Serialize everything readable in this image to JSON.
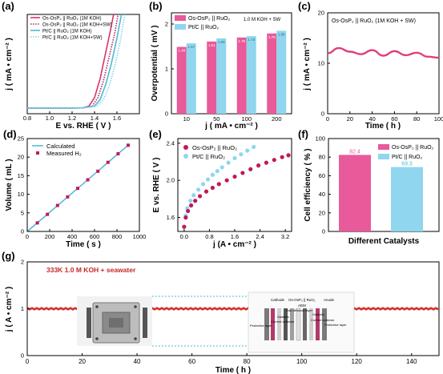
{
  "chart_data": [
    {
      "panel_label": "(a)",
      "type": "line",
      "xlabel": "E vs. RHE ( V )",
      "ylabel": "j ( mA • cm⁻² )",
      "xlim": [
        0.8,
        1.8
      ],
      "xticks": [
        "0.8",
        "1.0",
        "1.2",
        "1.4",
        "1.6"
      ],
      "ylim": [
        -5,
        100
      ],
      "legend_position": "top-left",
      "series": [
        {
          "name": "Os-OsP₂ || RuO₂ (1M KOH)",
          "color": "#d6336c",
          "style": "solid",
          "x": [
            0.8,
            1.0,
            1.2,
            1.3,
            1.35,
            1.4,
            1.45,
            1.5,
            1.54,
            1.57
          ],
          "y": [
            1,
            1,
            1,
            1.2,
            3,
            12,
            32,
            60,
            82,
            100
          ]
        },
        {
          "name": "Os-OsP₂ || RuO₂ (1M KOH+SW)",
          "color": "#a82860",
          "style": "dotted",
          "x": [
            0.8,
            1.0,
            1.2,
            1.3,
            1.38,
            1.43,
            1.48,
            1.53,
            1.58,
            1.61
          ],
          "y": [
            1,
            1,
            1,
            1.3,
            3,
            12,
            30,
            55,
            80,
            100
          ]
        },
        {
          "name": "Pt/C || RuO₂ (1M KOH)",
          "color": "#4fb7d6",
          "style": "solid",
          "x": [
            0.8,
            1.0,
            1.2,
            1.3,
            1.4,
            1.45,
            1.5,
            1.55,
            1.6,
            1.64
          ],
          "y": [
            1,
            1,
            1,
            1.3,
            3,
            10,
            26,
            48,
            75,
            100
          ]
        },
        {
          "name": "Pt/C || RuO₂ (1M KOH+SW)",
          "color": "#86d4e6",
          "style": "dotted",
          "x": [
            0.8,
            1.0,
            1.2,
            1.3,
            1.42,
            1.48,
            1.53,
            1.58,
            1.63,
            1.67
          ],
          "y": [
            1,
            1,
            1,
            1.3,
            3,
            10,
            24,
            45,
            72,
            100
          ]
        }
      ]
    },
    {
      "panel_label": "(b)",
      "type": "bar",
      "xlabel": "j ( mA • cm⁻² )",
      "ylabel": "Overpotential ( mV )",
      "annotation": "1.0 M KOH + SW",
      "categories": [
        "10",
        "50",
        "100",
        "200"
      ],
      "ylim": [
        0,
        2
      ],
      "yticks": [
        "0",
        "1",
        "2"
      ],
      "legend_position": "top-left",
      "series": [
        {
          "name": "Os-OsP₂ || RuO₂",
          "color": "#e85a99",
          "values": [
            1.49,
            1.61,
            1.7,
            1.79
          ],
          "labels": [
            "1.49",
            "1.61",
            "1.70",
            "1.79"
          ]
        },
        {
          "name": "Pt/C || RuO₂",
          "color": "#8fd6ee",
          "values": [
            1.57,
            1.68,
            1.73,
            1.85
          ],
          "labels": [
            "1.57",
            "1.68",
            "1.73",
            "1.85"
          ]
        }
      ]
    },
    {
      "panel_label": "(c)",
      "type": "line",
      "title": "Os-OsP₂ || RuO₂ (1M KOH + SW)",
      "xlabel": "Time ( h )",
      "ylabel": "j ( mA • cm⁻² )",
      "xlim": [
        0,
        100
      ],
      "xticks": [
        "0",
        "20",
        "40",
        "60",
        "80",
        "100"
      ],
      "ylim": [
        0,
        20
      ],
      "yticks": [
        "0",
        "10",
        "20"
      ],
      "series": [
        {
          "name": "",
          "color": "#e0407e",
          "x": [
            0,
            10,
            20,
            30,
            40,
            50,
            60,
            70,
            80,
            90,
            100
          ],
          "y": [
            12,
            13,
            12.3,
            11.8,
            12.6,
            11.5,
            12.4,
            11.6,
            12.1,
            11.3,
            11.1
          ]
        }
      ]
    },
    {
      "panel_label": "(d)",
      "type": "scatter",
      "xlabel": "Time ( s )",
      "ylabel": "Volume ( mL )",
      "xlim": [
        0,
        1000
      ],
      "xticks": [
        "0",
        "200",
        "400",
        "600",
        "800",
        "1000"
      ],
      "ylim": [
        0,
        25
      ],
      "yticks": [
        "0",
        "5",
        "10",
        "15",
        "20",
        "25"
      ],
      "legend_position": "top-left",
      "series": [
        {
          "name": "Calculated",
          "color": "#4fb7d6",
          "style": "line",
          "x": [
            0,
            900
          ],
          "y": [
            0,
            23.2
          ]
        },
        {
          "name": "Measured H₂",
          "color": "#c2185b",
          "style": "marker",
          "x": [
            90,
            180,
            270,
            360,
            450,
            540,
            630,
            720,
            810,
            900
          ],
          "y": [
            2.3,
            4.6,
            7,
            9.3,
            11.6,
            13.9,
            16.2,
            18.6,
            20.9,
            23.2
          ]
        }
      ]
    },
    {
      "panel_label": "(e)",
      "type": "scatter",
      "xlabel": "j (A • cm⁻² )",
      "ylabel": "E vs. RHE ( V )",
      "xlim": [
        -0.2,
        3.4
      ],
      "xticks": [
        "0.0",
        "0.8",
        "1.6",
        "2.4",
        "3.2"
      ],
      "ylim": [
        1.45,
        2.45
      ],
      "yticks": [
        "1.6",
        "2.0",
        "2.4"
      ],
      "legend_position": "top-left",
      "series": [
        {
          "name": "Os-OsP₂ || RuO₂",
          "color": "#c2185b",
          "x": [
            0.0,
            0.05,
            0.12,
            0.22,
            0.35,
            0.5,
            0.7,
            0.9,
            1.1,
            1.35,
            1.6,
            1.85,
            2.1,
            2.35,
            2.6,
            2.85,
            3.1,
            3.3
          ],
          "y": [
            1.5,
            1.6,
            1.67,
            1.73,
            1.78,
            1.83,
            1.88,
            1.92,
            1.96,
            2.0,
            2.04,
            2.08,
            2.12,
            2.16,
            2.19,
            2.22,
            2.25,
            2.27
          ]
        },
        {
          "name": "Pt/C || RuO₂",
          "color": "#8fd6ee",
          "x": [
            0.0,
            0.05,
            0.1,
            0.2,
            0.3,
            0.45,
            0.6,
            0.75,
            0.9,
            1.05,
            1.2,
            1.4,
            1.6,
            1.8,
            2.0,
            2.2
          ],
          "y": [
            1.5,
            1.62,
            1.7,
            1.78,
            1.84,
            1.9,
            1.96,
            2.01,
            2.06,
            2.1,
            2.14,
            2.19,
            2.24,
            2.28,
            2.32,
            2.36
          ]
        }
      ]
    },
    {
      "panel_label": "(f)",
      "type": "bar",
      "xlabel": "Different Catalysts",
      "ylabel": "Cell efficiency ( % )",
      "ylim": [
        0,
        100
      ],
      "yticks": [
        "0",
        "20",
        "40",
        "60",
        "80",
        "100"
      ],
      "legend_position": "top-right",
      "categories": [
        "Os-OsP₂ || RuO₂",
        "Pt/C || RuO₂"
      ],
      "values": [
        82.4,
        69.3
      ],
      "value_labels": [
        "82.4",
        "69.3"
      ],
      "colors": [
        "#e85a99",
        "#8fd6ee"
      ]
    },
    {
      "panel_label": "(g)",
      "type": "line",
      "annotation": "333K   1.0 M KOH + seawater",
      "xlabel": "Time ( h )",
      "ylabel": "j ( A • cm⁻² )",
      "xlim": [
        0,
        150
      ],
      "xticks": [
        "0",
        "20",
        "40",
        "60",
        "80",
        "100",
        "120",
        "140"
      ],
      "ylim": [
        0,
        2
      ],
      "yticks": [
        "0",
        "1",
        "2"
      ],
      "series": [
        {
          "name": "",
          "color": "#d32f2f",
          "x": [
            0,
            150
          ],
          "y": [
            1.0,
            1.0
          ]
        }
      ],
      "inset_labels": [
        "Cathode",
        "Os-OsP₂ || RuO₂",
        "Anode",
        "AEM",
        "Gas diffusion layer",
        "Gaskets",
        "Gaskets",
        "Current collector",
        "Current collector",
        "Protective layer",
        "Protective layer"
      ]
    }
  ]
}
